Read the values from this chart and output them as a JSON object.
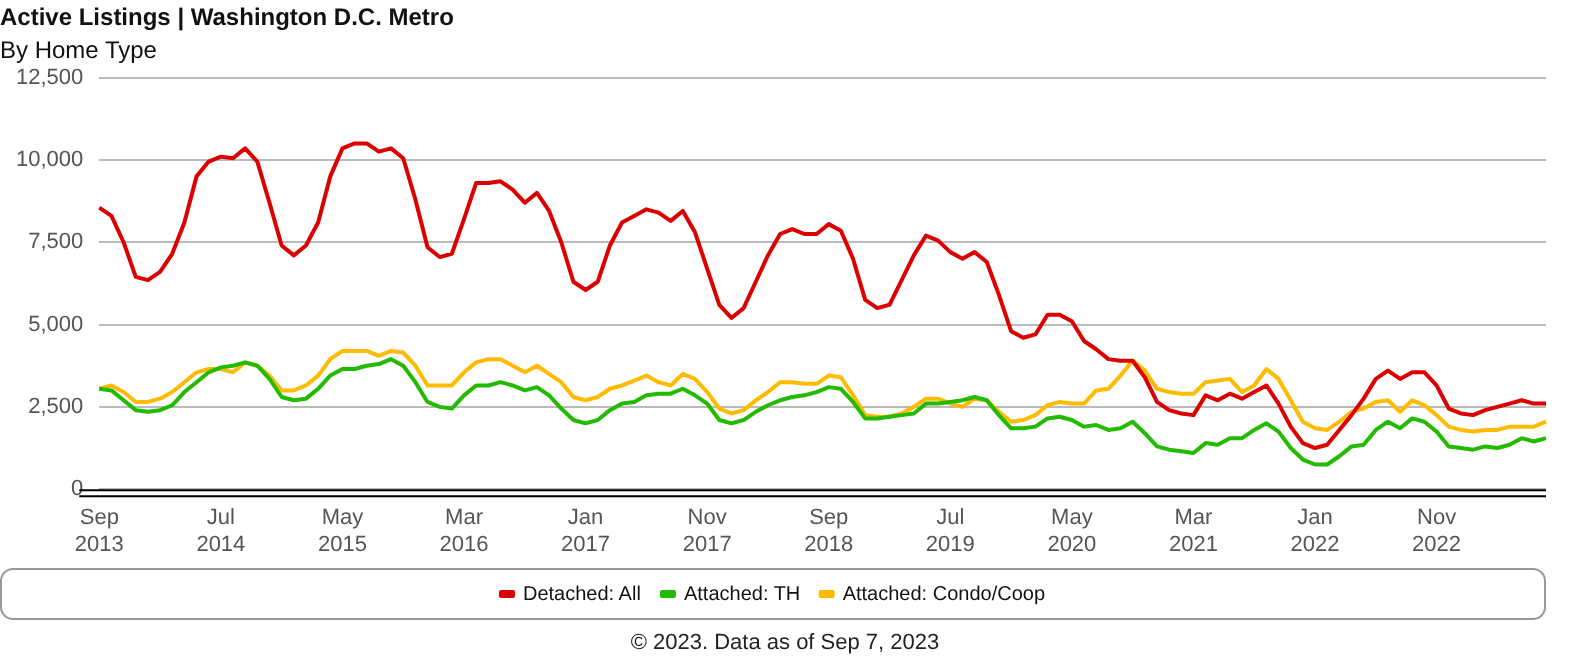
{
  "chart_data": {
    "type": "line",
    "title": "Active Listings | Washington D.C. Metro",
    "subtitle": "By Home Type",
    "categories": [
      "Sep 2013",
      null,
      null,
      null,
      null,
      null,
      null,
      null,
      null,
      null,
      "Jul 2014",
      null,
      null,
      null,
      null,
      null,
      null,
      null,
      null,
      null,
      "May 2015",
      null,
      null,
      null,
      null,
      null,
      null,
      null,
      null,
      null,
      "Mar 2016",
      null,
      null,
      null,
      null,
      null,
      null,
      null,
      null,
      null,
      "Jan 2017",
      null,
      null,
      null,
      null,
      null,
      null,
      null,
      null,
      null,
      "Nov 2017",
      null,
      null,
      null,
      null,
      null,
      null,
      null,
      null,
      null,
      "Sep 2018",
      null,
      null,
      null,
      null,
      null,
      null,
      null,
      null,
      null,
      "Jul 2019",
      null,
      null,
      null,
      null,
      null,
      null,
      null,
      null,
      null,
      "May 2020",
      null,
      null,
      null,
      null,
      null,
      null,
      null,
      null,
      null,
      "Mar 2021",
      null,
      null,
      null,
      null,
      null,
      null,
      null,
      null,
      null,
      "Jan 2022",
      null,
      null,
      null,
      null,
      null,
      null,
      null,
      null,
      null,
      "Nov 2022",
      null,
      null,
      null,
      null,
      null,
      null,
      null,
      null,
      null
    ],
    "series": [
      {
        "name": "Detached: All",
        "color": "#dd0000",
        "values": [
          8550,
          8300,
          7500,
          6450,
          6350,
          6600,
          7150,
          8100,
          9500,
          9950,
          10100,
          10050,
          10350,
          9950,
          8700,
          7400,
          7100,
          7400,
          8100,
          9500,
          10350,
          10500,
          10500,
          10250,
          10350,
          10050,
          8800,
          7350,
          7050,
          7150,
          8200,
          9300,
          9300,
          9350,
          9100,
          8700,
          9000,
          8450,
          7500,
          6300,
          6050,
          6300,
          7400,
          8100,
          8300,
          8500,
          8400,
          8150,
          8450,
          7800,
          6700,
          5600,
          5200,
          5500,
          6300,
          7100,
          7750,
          7900,
          7750,
          7750,
          8050,
          7850,
          7000,
          5750,
          5500,
          5600,
          6350,
          7100,
          7700,
          7550,
          7200,
          7000,
          7200,
          6900,
          5900,
          4800,
          4600,
          4700,
          5300,
          5300,
          5100,
          4500,
          4250,
          3950,
          3900,
          3900,
          3400,
          2650,
          2400,
          2300,
          2250,
          2850,
          2700,
          2900,
          2750,
          2950,
          3150,
          2600,
          1900,
          1400,
          1250,
          1350,
          1800,
          2250,
          2750,
          3350,
          3600,
          3350,
          3550,
          3550,
          3150,
          2450,
          2300,
          2250,
          2400,
          2500,
          2600,
          2700,
          2600,
          2600
        ]
      },
      {
        "name": "Attached: TH",
        "color": "#22bb00",
        "values": [
          3050,
          3000,
          2700,
          2400,
          2350,
          2400,
          2550,
          2950,
          3250,
          3550,
          3700,
          3750,
          3850,
          3750,
          3350,
          2800,
          2700,
          2750,
          3050,
          3450,
          3650,
          3650,
          3750,
          3800,
          3950,
          3750,
          3250,
          2650,
          2500,
          2450,
          2850,
          3150,
          3150,
          3250,
          3150,
          3000,
          3100,
          2850,
          2450,
          2100,
          2000,
          2100,
          2400,
          2600,
          2650,
          2850,
          2900,
          2900,
          3050,
          2850,
          2600,
          2100,
          2000,
          2100,
          2350,
          2550,
          2700,
          2800,
          2850,
          2950,
          3100,
          3050,
          2650,
          2150,
          2150,
          2200,
          2250,
          2300,
          2600,
          2600,
          2650,
          2700,
          2800,
          2700,
          2250,
          1850,
          1850,
          1900,
          2150,
          2200,
          2100,
          1900,
          1950,
          1800,
          1850,
          2050,
          1700,
          1300,
          1200,
          1150,
          1100,
          1400,
          1350,
          1550,
          1550,
          1800,
          2000,
          1750,
          1250,
          900,
          750,
          750,
          1000,
          1300,
          1350,
          1800,
          2050,
          1850,
          2150,
          2050,
          1750,
          1300,
          1250,
          1200,
          1300,
          1250,
          1350,
          1550,
          1450,
          1550
        ]
      },
      {
        "name": "Attached: Condo/Coop",
        "color": "#ffbb00",
        "values": [
          3050,
          3150,
          2950,
          2650,
          2650,
          2750,
          2950,
          3250,
          3550,
          3650,
          3650,
          3550,
          3850,
          3750,
          3450,
          3000,
          3000,
          3150,
          3450,
          3950,
          4200,
          4200,
          4200,
          4050,
          4200,
          4150,
          3750,
          3150,
          3150,
          3150,
          3550,
          3850,
          3950,
          3950,
          3750,
          3550,
          3750,
          3500,
          3250,
          2800,
          2700,
          2800,
          3050,
          3150,
          3300,
          3450,
          3250,
          3150,
          3500,
          3350,
          2950,
          2450,
          2300,
          2400,
          2700,
          2950,
          3250,
          3250,
          3200,
          3200,
          3450,
          3400,
          2850,
          2250,
          2200,
          2200,
          2300,
          2500,
          2750,
          2750,
          2600,
          2500,
          2750,
          2700,
          2350,
          2050,
          2100,
          2250,
          2550,
          2650,
          2600,
          2600,
          3000,
          3050,
          3450,
          3900,
          3600,
          3050,
          2950,
          2900,
          2900,
          3250,
          3300,
          3350,
          2950,
          3150,
          3650,
          3350,
          2700,
          2050,
          1850,
          1800,
          2050,
          2350,
          2450,
          2650,
          2700,
          2350,
          2700,
          2550,
          2250,
          1900,
          1800,
          1750,
          1800,
          1800,
          1900,
          1900,
          1900,
          2050
        ]
      }
    ],
    "ylim": [
      0,
      12500
    ],
    "yticks": [
      {
        "value": 0,
        "label": "0"
      },
      {
        "value": 2500,
        "label": "2,500"
      },
      {
        "value": 5000,
        "label": "5,000"
      },
      {
        "value": 7500,
        "label": "7,500"
      },
      {
        "value": 10000,
        "label": "10,000"
      },
      {
        "value": 12500,
        "label": "12,500"
      }
    ],
    "grid": "y",
    "legend": "bottom",
    "marker": "none",
    "line_style": "solid",
    "annotations": [
      "© 2023. Data as of Sep 7, 2023"
    ]
  }
}
